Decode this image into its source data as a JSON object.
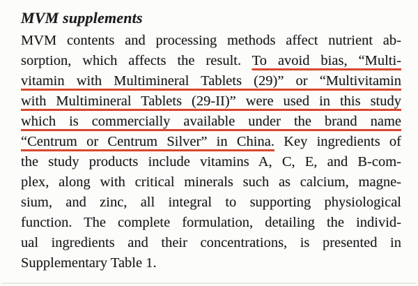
{
  "colors": {
    "underline": "#d9472e",
    "text": "#1c1c1c",
    "page": "#fcfcfb"
  },
  "heading": "MVM supplements",
  "paragraph": {
    "lines": [
      {
        "plain": "MVM contents and processing methods affect nutrient ab-"
      },
      {
        "plain": "sorption, which affects the result. ",
        "underlined": "To avoid bias, “Multi-"
      },
      {
        "underlined": "vitamin with Multimineral Tablets (29)” or “Multivitamin"
      },
      {
        "underlined": "with Multimineral Tablets (29-II)” were used in this study"
      },
      {
        "underlined": "which is commercially available under the brand name"
      },
      {
        "underlined": "“Centrum or Centrum Silver” in China.",
        "after": " Key ingredients of"
      },
      {
        "plain": "the study products include vitamins A, C, E, and B-com-"
      },
      {
        "plain": "plex, along with critical minerals such as calcium, magne-"
      },
      {
        "plain": "sium, and zinc, all integral to supporting physiological"
      },
      {
        "plain": "function. The complete formulation, detailing the individ-"
      },
      {
        "plain": "ual ingredients and their concentrations, is presented in"
      },
      {
        "plain": "Supplementary Table 1."
      }
    ]
  }
}
